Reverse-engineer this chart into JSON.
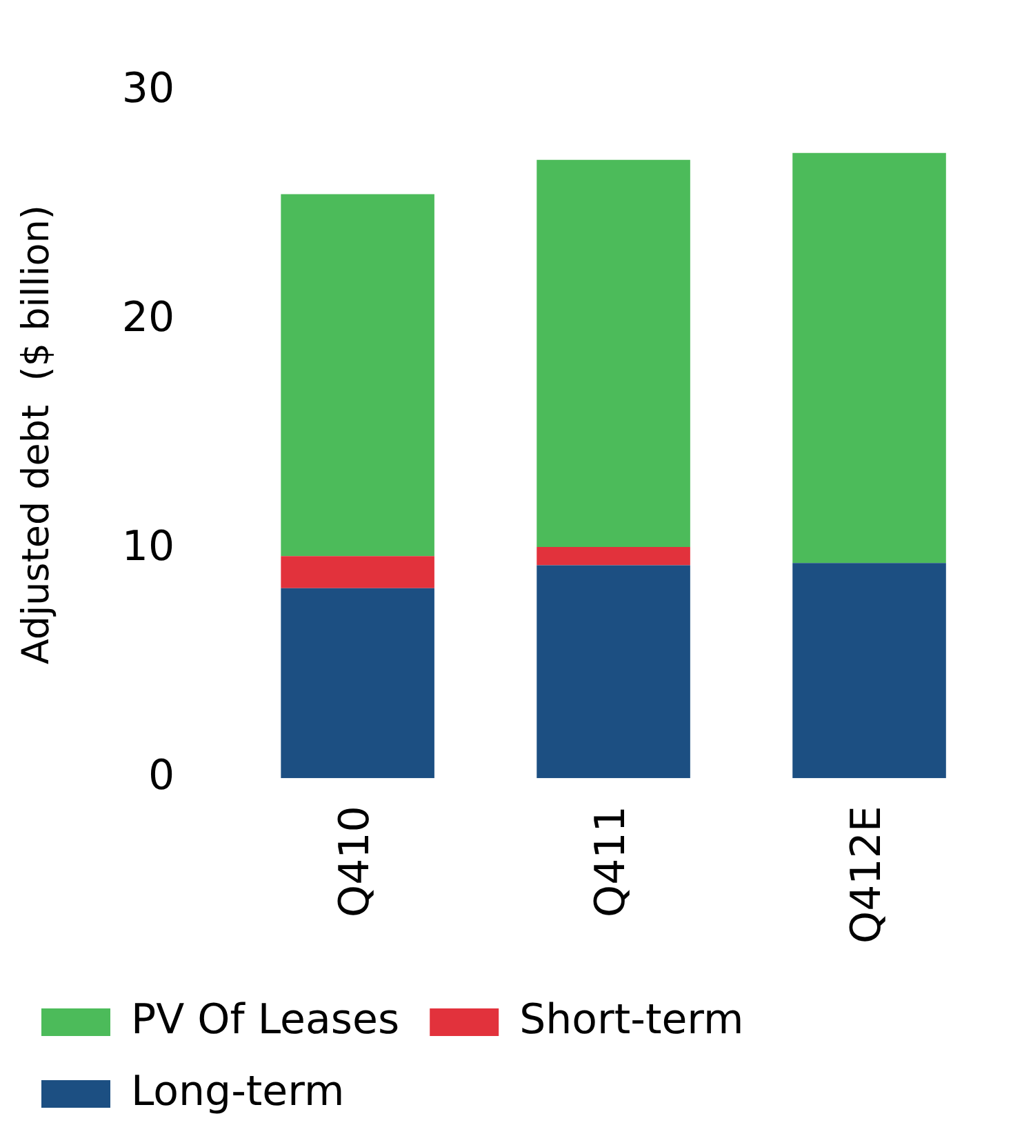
{
  "chart_data": {
    "type": "bar",
    "stacked": true,
    "ylabel": "Adjusted debt  ($ billion)",
    "categories": [
      "Q410",
      "Q411",
      "Q412E"
    ],
    "series": [
      {
        "name": "Long-term",
        "color": "#1c4f82",
        "values": [
          8.3,
          9.3,
          9.4
        ]
      },
      {
        "name": "Short-term",
        "color": "#e2323c",
        "values": [
          1.4,
          0.8,
          0
        ]
      },
      {
        "name": "PV Of Leases",
        "color": "#4cbb5a",
        "values": [
          15.8,
          16.9,
          17.9
        ]
      }
    ],
    "ylim": [
      0,
      30
    ],
    "yticks": [
      0,
      10,
      20,
      30
    ],
    "grid": false,
    "legend": "bottom"
  }
}
